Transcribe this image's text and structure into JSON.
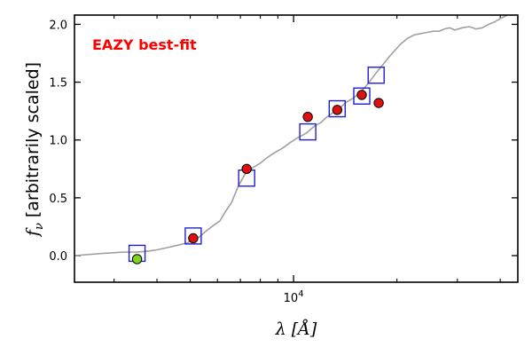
{
  "chart_data": {
    "type": "scatter",
    "annotation": "EAZY best-fit",
    "ylabel": "[arbitrarily scaled]",
    "ylabel_symbol": "f",
    "ylabel_subscript": "ν",
    "xlabel_symbol": "λ",
    "xlabel_unit": "[Å]",
    "x_scale": "log",
    "xlim": [
      2300,
      45000
    ],
    "ylim": [
      -0.23,
      2.08
    ],
    "yticks": [
      0.0,
      0.5,
      1.0,
      1.5,
      2.0
    ],
    "ytick_labels": [
      "0.0",
      "0.5",
      "1.0",
      "1.5",
      "2.0"
    ],
    "xtick_major": 10000,
    "xtick_major_base": "10",
    "xtick_major_exp": "4",
    "xticks_minor": [
      3000,
      4000,
      5000,
      6000,
      7000,
      8000,
      9000,
      20000,
      30000,
      40000
    ],
    "grid": false,
    "colors": {
      "sed_line": "#a0a0a0",
      "model_box": "#1f1fd0",
      "observed_point": "#e01010",
      "upper_point": "#7ed321",
      "annotation": "#ff0000"
    },
    "sed_curve": {
      "x": [
        2300,
        2800,
        3200,
        3500,
        3800,
        4000,
        4300,
        4600,
        4900,
        5100,
        5300,
        5400,
        5600,
        5900,
        6100,
        6300,
        6600,
        6900,
        7200,
        7600,
        8000,
        8400,
        8800,
        9300,
        9800,
        10300,
        10900,
        11500,
        12000,
        12400,
        12800,
        13300,
        13800,
        14300,
        14900,
        15500,
        16200,
        16800,
        17400,
        18300,
        19000,
        19800,
        20500,
        21500,
        22500,
        23500,
        24500,
        25500,
        26500,
        27500,
        28500,
        29500,
        31000,
        32500,
        34000,
        35500,
        37000,
        38500,
        40000,
        42000
      ],
      "y": [
        0.0,
        0.02,
        0.03,
        0.03,
        0.04,
        0.05,
        0.07,
        0.09,
        0.11,
        0.14,
        0.16,
        0.18,
        0.22,
        0.27,
        0.3,
        0.37,
        0.46,
        0.6,
        0.7,
        0.76,
        0.8,
        0.85,
        0.89,
        0.93,
        0.98,
        1.02,
        1.06,
        1.12,
        1.15,
        1.19,
        1.22,
        1.26,
        1.29,
        1.33,
        1.36,
        1.4,
        1.46,
        1.52,
        1.58,
        1.66,
        1.72,
        1.78,
        1.83,
        1.88,
        1.91,
        1.92,
        1.93,
        1.94,
        1.94,
        1.96,
        1.97,
        1.95,
        1.97,
        1.98,
        1.96,
        1.97,
        2.0,
        2.02,
        2.05,
        2.1
      ]
    },
    "model_points": {
      "x": [
        3500,
        5100,
        7300,
        11000,
        13400,
        15800,
        17400
      ],
      "y": [
        0.02,
        0.17,
        0.67,
        1.07,
        1.27,
        1.38,
        1.56
      ]
    },
    "observed_points": {
      "x": [
        5100,
        7300,
        11000,
        13400,
        15800,
        17700
      ],
      "y": [
        0.15,
        0.75,
        1.2,
        1.26,
        1.39,
        1.32
      ]
    },
    "low_point": {
      "x": [
        3500
      ],
      "y": [
        -0.03
      ]
    }
  }
}
